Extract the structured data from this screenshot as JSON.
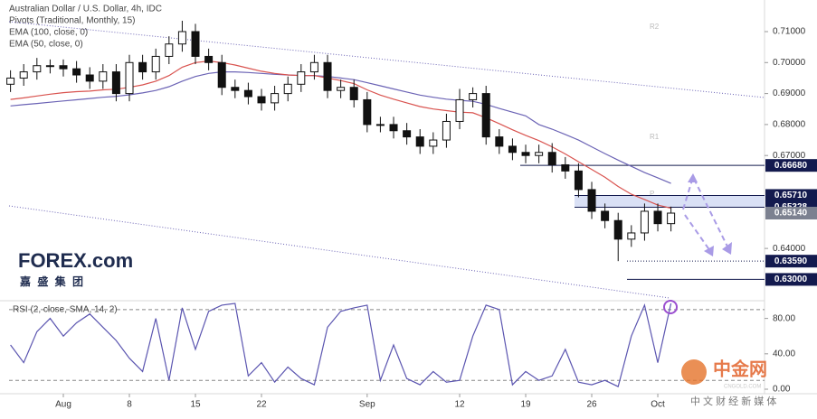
{
  "chart_data": [
    {
      "type": "candlestick",
      "title": "Australian Dollar / U.S. Dollar, 4h, IDC",
      "subtitle": "Pivots (Traditional, Monthly, 15)",
      "pivot_labels": [
        "R2",
        "R1",
        "P"
      ],
      "x": [
        -4,
        -3,
        -2,
        -1,
        0,
        1,
        2,
        3,
        4,
        5,
        6,
        7,
        8,
        9,
        10,
        11,
        12,
        13,
        14,
        15,
        16,
        17,
        18,
        19,
        20,
        21,
        22,
        23,
        24,
        25,
        26,
        27,
        28,
        29,
        30,
        31,
        32,
        33,
        34,
        35,
        36,
        37,
        38,
        39,
        40,
        41,
        42,
        43,
        44,
        45,
        46
      ],
      "open": [
        0.693,
        0.695,
        0.697,
        0.699,
        0.699,
        0.698,
        0.696,
        0.694,
        0.697,
        0.69,
        0.7,
        0.697,
        0.702,
        0.706,
        0.71,
        0.702,
        0.7,
        0.692,
        0.691,
        0.689,
        0.687,
        0.69,
        0.693,
        0.697,
        0.7,
        0.691,
        0.692,
        0.688,
        0.68,
        0.68,
        0.678,
        0.676,
        0.673,
        0.675,
        0.681,
        0.688,
        0.69,
        0.676,
        0.673,
        0.671,
        0.67,
        0.671,
        0.667,
        0.665,
        0.659,
        0.652,
        0.649,
        0.643,
        0.645,
        0.652,
        0.648
      ],
      "high": [
        0.6975,
        0.6995,
        0.7015,
        0.701,
        0.701,
        0.7005,
        0.6985,
        0.6995,
        0.6995,
        0.7025,
        0.7025,
        0.7045,
        0.7085,
        0.7135,
        0.7125,
        0.7045,
        0.7025,
        0.6945,
        0.6935,
        0.6915,
        0.6925,
        0.6955,
        0.6995,
        0.7025,
        0.7025,
        0.6945,
        0.6945,
        0.6905,
        0.6825,
        0.6825,
        0.6805,
        0.6785,
        0.6775,
        0.6835,
        0.6915,
        0.692,
        0.6925,
        0.6785,
        0.6755,
        0.6735,
        0.6735,
        0.674,
        0.6695,
        0.6675,
        0.6615,
        0.6545,
        0.6515,
        0.6475,
        0.6545,
        0.6545,
        0.6535
      ],
      "low": [
        0.6905,
        0.6925,
        0.6945,
        0.6965,
        0.6955,
        0.6935,
        0.6915,
        0.6915,
        0.6875,
        0.6875,
        0.6945,
        0.6945,
        0.6995,
        0.7035,
        0.6995,
        0.6975,
        0.6895,
        0.6885,
        0.6865,
        0.6845,
        0.6845,
        0.6875,
        0.6905,
        0.6945,
        0.6885,
        0.6885,
        0.6855,
        0.6775,
        0.6775,
        0.6755,
        0.6735,
        0.6705,
        0.6705,
        0.6725,
        0.6785,
        0.6855,
        0.6735,
        0.6705,
        0.6685,
        0.6675,
        0.6675,
        0.6645,
        0.6625,
        0.6565,
        0.6495,
        0.6465,
        0.6359,
        0.6405,
        0.6425,
        0.6455,
        0.6455
      ],
      "close": [
        0.695,
        0.697,
        0.699,
        0.699,
        0.698,
        0.696,
        0.694,
        0.697,
        0.69,
        0.7,
        0.697,
        0.702,
        0.706,
        0.71,
        0.702,
        0.7,
        0.692,
        0.691,
        0.689,
        0.687,
        0.69,
        0.693,
        0.697,
        0.7,
        0.691,
        0.692,
        0.688,
        0.68,
        0.68,
        0.678,
        0.676,
        0.673,
        0.675,
        0.681,
        0.688,
        0.69,
        0.676,
        0.673,
        0.671,
        0.67,
        0.671,
        0.667,
        0.665,
        0.659,
        0.652,
        0.649,
        0.643,
        0.645,
        0.652,
        0.648,
        0.6514
      ],
      "series": [
        {
          "name": "EMA (100, close, 0)",
          "color": "#6b63b5",
          "values": [
            0.686,
            0.6864,
            0.6868,
            0.6872,
            0.6876,
            0.688,
            0.6884,
            0.6888,
            0.6891,
            0.6896,
            0.6902,
            0.691,
            0.6922,
            0.694,
            0.6955,
            0.6965,
            0.697,
            0.697,
            0.6968,
            0.6965,
            0.6962,
            0.696,
            0.6958,
            0.6958,
            0.6955,
            0.695,
            0.6945,
            0.6935,
            0.6925,
            0.6915,
            0.6905,
            0.6895,
            0.6888,
            0.6882,
            0.6878,
            0.6875,
            0.6865,
            0.6852,
            0.684,
            0.6828,
            0.68,
            0.6785,
            0.6768,
            0.675,
            0.6728,
            0.6706,
            0.6685,
            0.6665,
            0.6645,
            0.6628,
            0.661
          ]
        },
        {
          "name": "EMA (50, close, 0)",
          "color": "#d9534f",
          "values": [
            0.6881,
            0.6886,
            0.6892,
            0.6898,
            0.6903,
            0.6906,
            0.6908,
            0.6912,
            0.6914,
            0.692,
            0.6928,
            0.694,
            0.6958,
            0.6985,
            0.7,
            0.7005,
            0.7,
            0.6992,
            0.6982,
            0.6972,
            0.6965,
            0.696,
            0.6958,
            0.6958,
            0.695,
            0.6942,
            0.6932,
            0.6912,
            0.6895,
            0.6882,
            0.687,
            0.6858,
            0.685,
            0.6845,
            0.684,
            0.6838,
            0.6822,
            0.6803,
            0.6783,
            0.6765,
            0.6748,
            0.6728,
            0.6705,
            0.668,
            0.6655,
            0.663,
            0.66,
            0.6575,
            0.6558,
            0.654,
            0.653
          ]
        }
      ],
      "xlim": [
        -4.11,
        53.08
      ],
      "xticks": [
        {
          "value": 0,
          "label": "Aug"
        },
        {
          "value": 5,
          "label": "8"
        },
        {
          "value": 10,
          "label": "15"
        },
        {
          "value": 15,
          "label": "22"
        },
        {
          "value": 23,
          "label": "Sep"
        },
        {
          "value": 30,
          "label": "12"
        },
        {
          "value": 35,
          "label": "19"
        },
        {
          "value": 40,
          "label": "26"
        },
        {
          "value": 45,
          "label": "Oct"
        }
      ],
      "ylim": [
        0.624,
        0.7202
      ],
      "yticks": [
        {
          "value": 0.71,
          "label": "0.71000"
        },
        {
          "value": 0.7,
          "label": "0.70000"
        },
        {
          "value": 0.69,
          "label": "0.69000"
        },
        {
          "value": 0.68,
          "label": "0.68000"
        },
        {
          "value": 0.67,
          "label": "0.67000"
        },
        {
          "value": 0.64,
          "label": "0.64000"
        }
      ],
      "levels": [
        {
          "value": 0.6668,
          "label": "0.66680",
          "color": "#131a4e"
        },
        {
          "value": 0.6571,
          "label": "0.65710",
          "color": "#131a4e"
        },
        {
          "value": 0.65328,
          "label": "0.65328",
          "color": "#131a4e"
        },
        {
          "value": 0.6514,
          "label": "0.65140",
          "color": "#7c8190"
        },
        {
          "value": 0.6359,
          "label": "0.63590",
          "color": "#131a4e"
        },
        {
          "value": 0.63,
          "label": "0.63000",
          "color": "#131a4e"
        }
      ]
    },
    {
      "type": "line",
      "title": "RSI (2, close, SMA, 14, 2)",
      "color": "#5b55b0",
      "values": [
        50,
        30,
        65,
        80,
        60,
        75,
        85,
        70,
        55,
        35,
        20,
        80,
        10,
        92,
        45,
        88,
        95,
        97,
        15,
        30,
        8,
        25,
        12,
        5,
        70,
        88,
        92,
        95,
        10,
        50,
        12,
        5,
        20,
        8,
        10,
        60,
        95,
        90,
        5,
        20,
        10,
        15,
        45,
        8,
        5,
        10,
        3,
        60,
        95,
        30,
        97
      ],
      "ylim": [
        0,
        98
      ],
      "yticks": [
        {
          "value": 80,
          "label": "80.00"
        },
        {
          "value": 40,
          "label": "40.00"
        },
        {
          "value": 0,
          "label": "0.00"
        }
      ],
      "bands": [
        90,
        10
      ]
    }
  ],
  "watermarks": {
    "brand": "FOREX.com",
    "brand_cn": "嘉 盛 集 团",
    "site": "中金网",
    "site_domain": "CNGOLD.COM",
    "site_tagline": "中 文 财 经 新 媒 体"
  }
}
